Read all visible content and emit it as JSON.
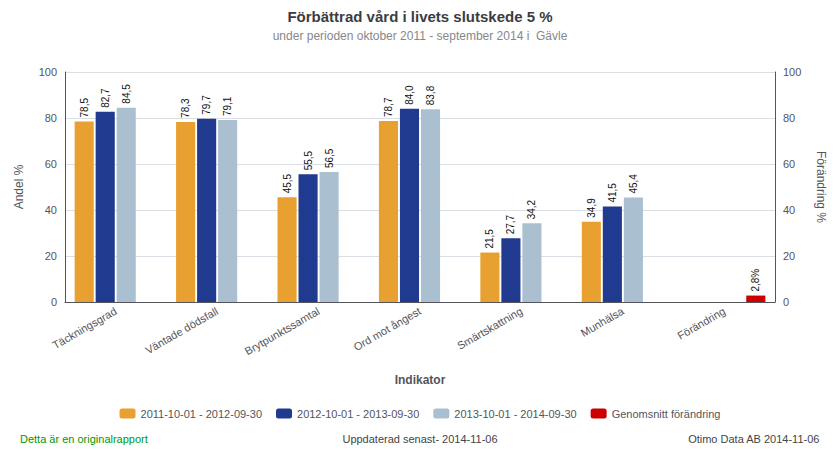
{
  "chart_data": {
    "type": "bar",
    "title": "Förbättrad vård i livets slutskede 5 %",
    "subtitle": "under perioden oktober 2011 - september 2014 i  Gävle",
    "xlabel": "Indikator",
    "ylabel": "Andel %",
    "y2label": "Förändring %",
    "categories": [
      "Täckningsgrad",
      "Väntade dödsfall",
      "Brytpunktssamtal",
      "Ord mot ångest",
      "Smärtskattning",
      "Munhälsa",
      "Förändring"
    ],
    "series": [
      {
        "name": "2011-10-01 - 2012-09-30",
        "color": "#E8A030",
        "values": [
          78.5,
          78.3,
          45.5,
          78.7,
          21.5,
          34.9,
          null
        ],
        "value_labels": [
          "78,5",
          "78,3",
          "45,5",
          "78,7",
          "21,5",
          "34,9",
          null
        ]
      },
      {
        "name": "2012-10-01 - 2013-09-30",
        "color": "#1F3A8F",
        "values": [
          82.7,
          79.7,
          55.5,
          84.0,
          27.7,
          41.5,
          null
        ],
        "value_labels": [
          "82,7",
          "79,7",
          "55,5",
          "84,0",
          "27,7",
          "41,5",
          null
        ]
      },
      {
        "name": "2013-10-01 - 2014-09-30",
        "color": "#AABFCF",
        "values": [
          84.5,
          79.1,
          56.5,
          83.8,
          34.2,
          45.4,
          null
        ],
        "value_labels": [
          "84,5",
          "79,1",
          "56,5",
          "83,8",
          "34,2",
          "45,4",
          null
        ]
      },
      {
        "name": "Genomsnitt förändring",
        "color": "#CC0000",
        "values": [
          null,
          null,
          null,
          null,
          null,
          null,
          2.8
        ],
        "value_labels": [
          null,
          null,
          null,
          null,
          null,
          null,
          "2,8%"
        ]
      }
    ],
    "ylim": [
      0,
      100
    ],
    "yticks": [
      0,
      20,
      40,
      60,
      80,
      100
    ],
    "y2lim": [
      0,
      100
    ],
    "y2ticks": [
      0,
      20,
      40,
      60,
      80,
      100
    ],
    "grid": true,
    "legend": "bottom",
    "data_labels": true,
    "annotations": [
      {
        "text": "Detta är en originalrapport",
        "color": "#009900"
      },
      {
        "text": "Uppdaterad senast- 2014-11-06",
        "color": "#444444"
      },
      {
        "text": "Otimo Data AB 2014-11-06",
        "color": "#444444"
      }
    ]
  }
}
